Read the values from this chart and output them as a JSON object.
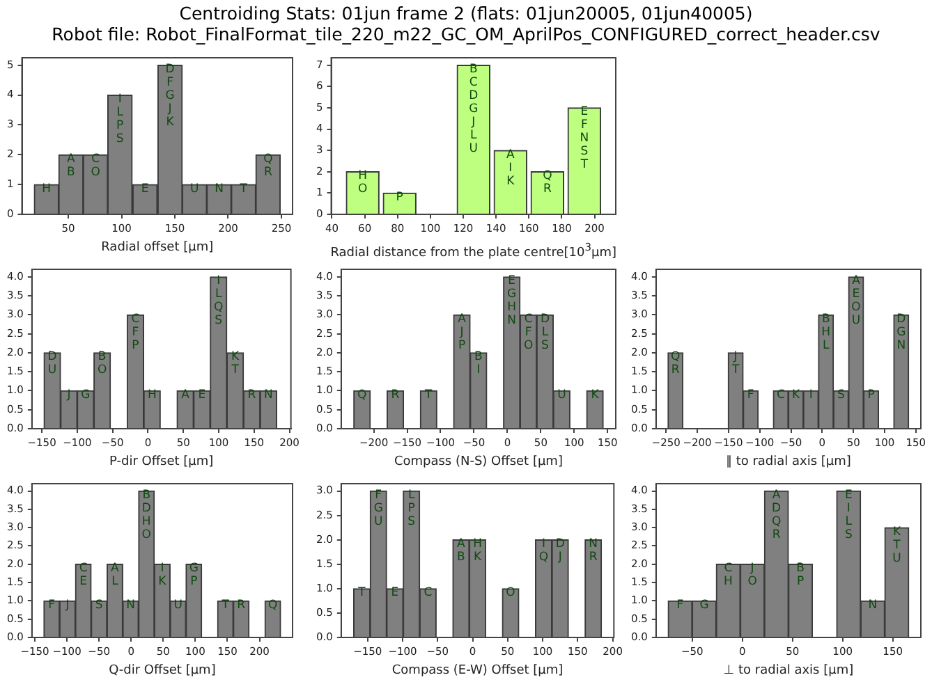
{
  "chart_data": [
    {
      "type": "histogram",
      "title": "Centroiding Stats: 01jun frame 2 (flats: 01jun20005, 01jun40005)",
      "subtitle": "Robot file: Robot_FinalFormat_tile_220_m22_GC_OM_AprilPos_CONFIGURED_correct_header.csv",
      "xlabel": "Radial offset [μm]",
      "color": "#808080",
      "bins": [
        18,
        41,
        64,
        87,
        110,
        134,
        157,
        180,
        203,
        226,
        249
      ],
      "values": [
        1,
        2,
        2,
        4,
        1,
        5,
        1,
        1,
        1,
        2
      ],
      "xlim": [
        6.5,
        260.5
      ],
      "ylim": [
        0,
        5.25
      ],
      "xticks": [
        50,
        100,
        150,
        200,
        250
      ],
      "yticks": [
        0,
        1,
        2,
        3,
        4,
        5
      ],
      "annotations": [
        {
          "text": "H",
          "x": 29.5,
          "y": 1
        },
        {
          "text": "A\nB",
          "x": 52.5,
          "y": 2
        },
        {
          "text": "C\nO",
          "x": 75.5,
          "y": 2
        },
        {
          "text": "I\nL\nP\nS",
          "x": 98.5,
          "y": 4
        },
        {
          "text": "E",
          "x": 122,
          "y": 1
        },
        {
          "text": "D\nF\nG\nJ\nK",
          "x": 145.5,
          "y": 5
        },
        {
          "text": "U",
          "x": 168.5,
          "y": 1
        },
        {
          "text": "N",
          "x": 191.5,
          "y": 1
        },
        {
          "text": "T",
          "x": 214.5,
          "y": 1
        },
        {
          "text": "Q\nR",
          "x": 237.5,
          "y": 2
        }
      ]
    },
    {
      "type": "histogram",
      "xlabel": "Radial distance from the plate centre[10$^{3}$μm]",
      "color": "#bfff80",
      "bins": [
        47.5,
        70,
        92.5,
        115,
        137.5,
        160,
        182.5,
        205
      ],
      "values": [
        2,
        1,
        0,
        7,
        3,
        2,
        5
      ],
      "xlim": [
        39.6,
        212.9
      ],
      "ylim": [
        0,
        7.35
      ],
      "xticks": [
        40,
        60,
        80,
        100,
        120,
        140,
        160,
        180,
        200
      ],
      "yticks": [
        0,
        1,
        2,
        3,
        4,
        5,
        6,
        7
      ],
      "annotations": [
        {
          "text": "H\nO",
          "x": 58.75,
          "y": 2
        },
        {
          "text": "P",
          "x": 81.25,
          "y": 1
        },
        {
          "text": "B\nC\nD\nG\nJ\nL\nU",
          "x": 126.25,
          "y": 7
        },
        {
          "text": "A\nI\nK",
          "x": 148.75,
          "y": 3
        },
        {
          "text": "Q\nR",
          "x": 171.25,
          "y": 2
        },
        {
          "text": "E\nF\nN\nS\nT",
          "x": 193.75,
          "y": 5
        }
      ]
    },
    {
      "type": "histogram",
      "xlabel": "P-dir Offset [μm]",
      "color": "#808080",
      "bins": [
        -147,
        -123.5,
        -100,
        -76.5,
        -53,
        -29.5,
        -6,
        17.5,
        41,
        64.5,
        88,
        111.5,
        135,
        158.5,
        182
      ],
      "values": [
        2,
        1,
        1,
        2,
        0,
        3,
        1,
        0,
        1,
        1,
        4,
        2,
        1,
        1
      ],
      "xlim": [
        -164,
        202
      ],
      "ylim": [
        0,
        4.2
      ],
      "xticks": [
        -150,
        -100,
        -50,
        0,
        50,
        100,
        150,
        200
      ],
      "yticks": [
        {
          "value": 0,
          "label": "0.0"
        },
        {
          "value": 0.5,
          "label": "0.5"
        },
        {
          "value": 1,
          "label": "1.0"
        },
        {
          "value": 1.5,
          "label": "1.5"
        },
        {
          "value": 2,
          "label": "2.0"
        },
        {
          "value": 2.5,
          "label": "2.5"
        },
        {
          "value": 3,
          "label": "3.0"
        },
        {
          "value": 3.5,
          "label": "3.5"
        },
        {
          "value": 4,
          "label": "4.0"
        }
      ],
      "annotations": [
        {
          "text": "D\nU",
          "x": -135.25,
          "y": 2
        },
        {
          "text": "J",
          "x": -111.75,
          "y": 1
        },
        {
          "text": "G",
          "x": -88.25,
          "y": 1
        },
        {
          "text": "B\nO",
          "x": -64.75,
          "y": 2
        },
        {
          "text": "C\nF\nP",
          "x": -17.75,
          "y": 3
        },
        {
          "text": "H",
          "x": 5.75,
          "y": 1
        },
        {
          "text": "A",
          "x": 52.75,
          "y": 1
        },
        {
          "text": "E",
          "x": 76.25,
          "y": 1
        },
        {
          "text": "I\nL\nQ\nS",
          "x": 99.75,
          "y": 4
        },
        {
          "text": "K\nT",
          "x": 123.25,
          "y": 2
        },
        {
          "text": "R",
          "x": 146.75,
          "y": 1
        },
        {
          "text": "N",
          "x": 170.25,
          "y": 1
        }
      ]
    },
    {
      "type": "histogram",
      "xlabel": "Compass (N-S) Offset [μm]",
      "color": "#808080",
      "bins": [
        -230,
        -205.1,
        -180.2,
        -155.3,
        -130.4,
        -105.5,
        -80.6,
        -55.7,
        -30.8,
        -5.9,
        19,
        43.9,
        68.8,
        93.7,
        118.6,
        143.5
      ],
      "values": [
        1,
        0,
        1,
        0,
        1,
        0,
        3,
        2,
        0,
        4,
        3,
        3,
        1,
        0,
        1
      ],
      "xlim": [
        -248.7,
        162.2
      ],
      "ylim": [
        0,
        4.2
      ],
      "xticks": [
        -200,
        -150,
        -100,
        -50,
        0,
        50,
        100,
        150
      ],
      "yticks": [
        {
          "value": 0,
          "label": "0.0"
        },
        {
          "value": 0.5,
          "label": "0.5"
        },
        {
          "value": 1,
          "label": "1.0"
        },
        {
          "value": 1.5,
          "label": "1.5"
        },
        {
          "value": 2,
          "label": "2.0"
        },
        {
          "value": 2.5,
          "label": "2.5"
        },
        {
          "value": 3,
          "label": "3.0"
        },
        {
          "value": 3.5,
          "label": "3.5"
        },
        {
          "value": 4,
          "label": "4.0"
        }
      ],
      "annotations": [
        {
          "text": "Q",
          "x": -217.55,
          "y": 1
        },
        {
          "text": "R",
          "x": -167.75,
          "y": 1
        },
        {
          "text": "T",
          "x": -117.95,
          "y": 1
        },
        {
          "text": "A\nJ\nP",
          "x": -68.15,
          "y": 3
        },
        {
          "text": "B\nI",
          "x": -43.25,
          "y": 2
        },
        {
          "text": "E\nG\nH\nN",
          "x": 6.55,
          "y": 4
        },
        {
          "text": "C\nF\nO",
          "x": 31.45,
          "y": 3
        },
        {
          "text": "D\nL\nS",
          "x": 56.35,
          "y": 3
        },
        {
          "text": "U",
          "x": 81.25,
          "y": 1
        },
        {
          "text": "K",
          "x": 131.05,
          "y": 1
        }
      ]
    },
    {
      "type": "histogram",
      "xlabel": "∥ to radial axis [μm]",
      "color": "#808080",
      "bins": [
        -247,
        -222.9,
        -198.8,
        -174.7,
        -150.6,
        -126.5,
        -102.4,
        -78.3,
        -54.2,
        -30.1,
        -6,
        18.1,
        42.2,
        66.3,
        90.4,
        114.5,
        138.6
      ],
      "values": [
        2,
        0,
        0,
        0,
        2,
        1,
        0,
        1,
        1,
        1,
        3,
        1,
        4,
        1,
        0,
        3
      ],
      "xlim": [
        -266,
        158
      ],
      "ylim": [
        0,
        4.2
      ],
      "xticks": [
        -250,
        -200,
        -150,
        -100,
        -50,
        0,
        50,
        100,
        150
      ],
      "yticks": [
        {
          "value": 0,
          "label": "0.0"
        },
        {
          "value": 0.5,
          "label": "0.5"
        },
        {
          "value": 1,
          "label": "1.0"
        },
        {
          "value": 1.5,
          "label": "1.5"
        },
        {
          "value": 2,
          "label": "2.0"
        },
        {
          "value": 2.5,
          "label": "2.5"
        },
        {
          "value": 3,
          "label": "3.0"
        },
        {
          "value": 3.5,
          "label": "3.5"
        },
        {
          "value": 4,
          "label": "4.0"
        }
      ],
      "annotations": [
        {
          "text": "Q\nR",
          "x": -234.95,
          "y": 2
        },
        {
          "text": "J\nT",
          "x": -138.55,
          "y": 2
        },
        {
          "text": "F",
          "x": -114.45,
          "y": 1
        },
        {
          "text": "C",
          "x": -66.25,
          "y": 1
        },
        {
          "text": "K",
          "x": -42.15,
          "y": 1
        },
        {
          "text": "I",
          "x": -18.05,
          "y": 1
        },
        {
          "text": "B\nH\nL",
          "x": 6.05,
          "y": 3
        },
        {
          "text": "S",
          "x": 30.15,
          "y": 1
        },
        {
          "text": "A\nE\nO\nU",
          "x": 54.25,
          "y": 4
        },
        {
          "text": "P",
          "x": 78.35,
          "y": 1
        },
        {
          "text": "D\nG\nN",
          "x": 126.55,
          "y": 3
        }
      ]
    },
    {
      "type": "histogram",
      "xlabel": "Q-dir Offset [μm]",
      "color": "#808080",
      "bins": [
        -136,
        -111.4,
        -86.8,
        -62.2,
        -37.6,
        -13,
        11.6,
        36.2,
        60.8,
        85.4,
        110,
        134.6,
        159.2,
        183.8,
        208.4,
        233
      ],
      "values": [
        1,
        1,
        2,
        1,
        2,
        1,
        4,
        2,
        1,
        2,
        0,
        1,
        1,
        0,
        1
      ],
      "xlim": [
        -154.5,
        251.5
      ],
      "ylim": [
        0,
        4.2
      ],
      "xticks": [
        -150,
        -100,
        -50,
        0,
        50,
        100,
        150,
        200
      ],
      "yticks": [
        {
          "value": 0,
          "label": "0.0"
        },
        {
          "value": 0.5,
          "label": "0.5"
        },
        {
          "value": 1,
          "label": "1.0"
        },
        {
          "value": 1.5,
          "label": "1.5"
        },
        {
          "value": 2,
          "label": "2.0"
        },
        {
          "value": 2.5,
          "label": "2.5"
        },
        {
          "value": 3,
          "label": "3.0"
        },
        {
          "value": 3.5,
          "label": "3.5"
        },
        {
          "value": 4,
          "label": "4.0"
        }
      ],
      "annotations": [
        {
          "text": "F",
          "x": -123.7,
          "y": 1
        },
        {
          "text": "J",
          "x": -99.1,
          "y": 1
        },
        {
          "text": "C\nE",
          "x": -74.5,
          "y": 2
        },
        {
          "text": "S",
          "x": -49.9,
          "y": 1
        },
        {
          "text": "A\nL",
          "x": -25.3,
          "y": 2
        },
        {
          "text": "N",
          "x": -0.7,
          "y": 1
        },
        {
          "text": "B\nD\nH\nO",
          "x": 23.9,
          "y": 4
        },
        {
          "text": "I\nK",
          "x": 48.5,
          "y": 2
        },
        {
          "text": "U",
          "x": 73.1,
          "y": 1
        },
        {
          "text": "G\nP",
          "x": 97.7,
          "y": 2
        },
        {
          "text": "T",
          "x": 146.9,
          "y": 1
        },
        {
          "text": "R",
          "x": 171.5,
          "y": 1
        },
        {
          "text": "Q",
          "x": 220.7,
          "y": 1
        }
      ]
    },
    {
      "type": "histogram",
      "xlabel": "Compass (E-W) Offset [μm]",
      "color": "#808080",
      "bins": [
        -170,
        -146.4,
        -122.8,
        -99.2,
        -75.6,
        -52,
        -28.4,
        -4.8,
        18.8,
        42.4,
        66,
        89.6,
        113.2,
        136.8,
        160.4,
        184
      ],
      "values": [
        1,
        3,
        1,
        3,
        1,
        0,
        2,
        2,
        0,
        1,
        0,
        2,
        2,
        0,
        2
      ],
      "xlim": [
        -187.7,
        201.7
      ],
      "ylim": [
        0,
        3.15
      ],
      "xticks": [
        -150,
        -100,
        -50,
        0,
        50,
        100,
        150,
        200
      ],
      "yticks": [
        {
          "value": 0,
          "label": "0.0"
        },
        {
          "value": 0.5,
          "label": "0.5"
        },
        {
          "value": 1,
          "label": "1.0"
        },
        {
          "value": 1.5,
          "label": "1.5"
        },
        {
          "value": 2,
          "label": "2.0"
        },
        {
          "value": 2.5,
          "label": "2.5"
        },
        {
          "value": 3,
          "label": "3.0"
        }
      ],
      "annotations": [
        {
          "text": "T",
          "x": -158.2,
          "y": 1
        },
        {
          "text": "F\nG\nU",
          "x": -134.6,
          "y": 3
        },
        {
          "text": "E",
          "x": -111,
          "y": 1
        },
        {
          "text": "L\nP\nS",
          "x": -87.4,
          "y": 3
        },
        {
          "text": "C",
          "x": -63.8,
          "y": 1
        },
        {
          "text": "A\nB",
          "x": -16.6,
          "y": 2
        },
        {
          "text": "H\nK",
          "x": 7,
          "y": 2
        },
        {
          "text": "O",
          "x": 54.2,
          "y": 1
        },
        {
          "text": "I\nQ",
          "x": 101.4,
          "y": 2
        },
        {
          "text": "D\nJ",
          "x": 125,
          "y": 2
        },
        {
          "text": "N\nR",
          "x": 172.2,
          "y": 2
        }
      ]
    },
    {
      "type": "histogram",
      "xlabel": "⊥ to radial axis [μm]",
      "color": "#808080",
      "bins": [
        -74,
        -50,
        -26,
        -2,
        22,
        46,
        70,
        94,
        118,
        142,
        166
      ],
      "values": [
        1,
        1,
        2,
        2,
        4,
        2,
        0,
        4,
        1,
        3
      ],
      "xlim": [
        -86,
        178
      ],
      "ylim": [
        0,
        4.2
      ],
      "xticks": [
        -50,
        0,
        50,
        100,
        150
      ],
      "yticks": [
        {
          "value": 0,
          "label": "0.0"
        },
        {
          "value": 0.5,
          "label": "0.5"
        },
        {
          "value": 1,
          "label": "1.0"
        },
        {
          "value": 1.5,
          "label": "1.5"
        },
        {
          "value": 2,
          "label": "2.0"
        },
        {
          "value": 2.5,
          "label": "2.5"
        },
        {
          "value": 3,
          "label": "3.0"
        },
        {
          "value": 3.5,
          "label": "3.5"
        },
        {
          "value": 4,
          "label": "4.0"
        }
      ],
      "annotations": [
        {
          "text": "F",
          "x": -62,
          "y": 1
        },
        {
          "text": "G",
          "x": -38,
          "y": 1
        },
        {
          "text": "C\nH",
          "x": -14,
          "y": 2
        },
        {
          "text": "J\nO",
          "x": 10,
          "y": 2
        },
        {
          "text": "A\nD\nQ\nR",
          "x": 34,
          "y": 4
        },
        {
          "text": "B\nP",
          "x": 58,
          "y": 2
        },
        {
          "text": "E\nI\nL\nS",
          "x": 106,
          "y": 4
        },
        {
          "text": "N",
          "x": 130,
          "y": 1
        },
        {
          "text": "K\nT\nU",
          "x": 154,
          "y": 3
        }
      ]
    }
  ]
}
